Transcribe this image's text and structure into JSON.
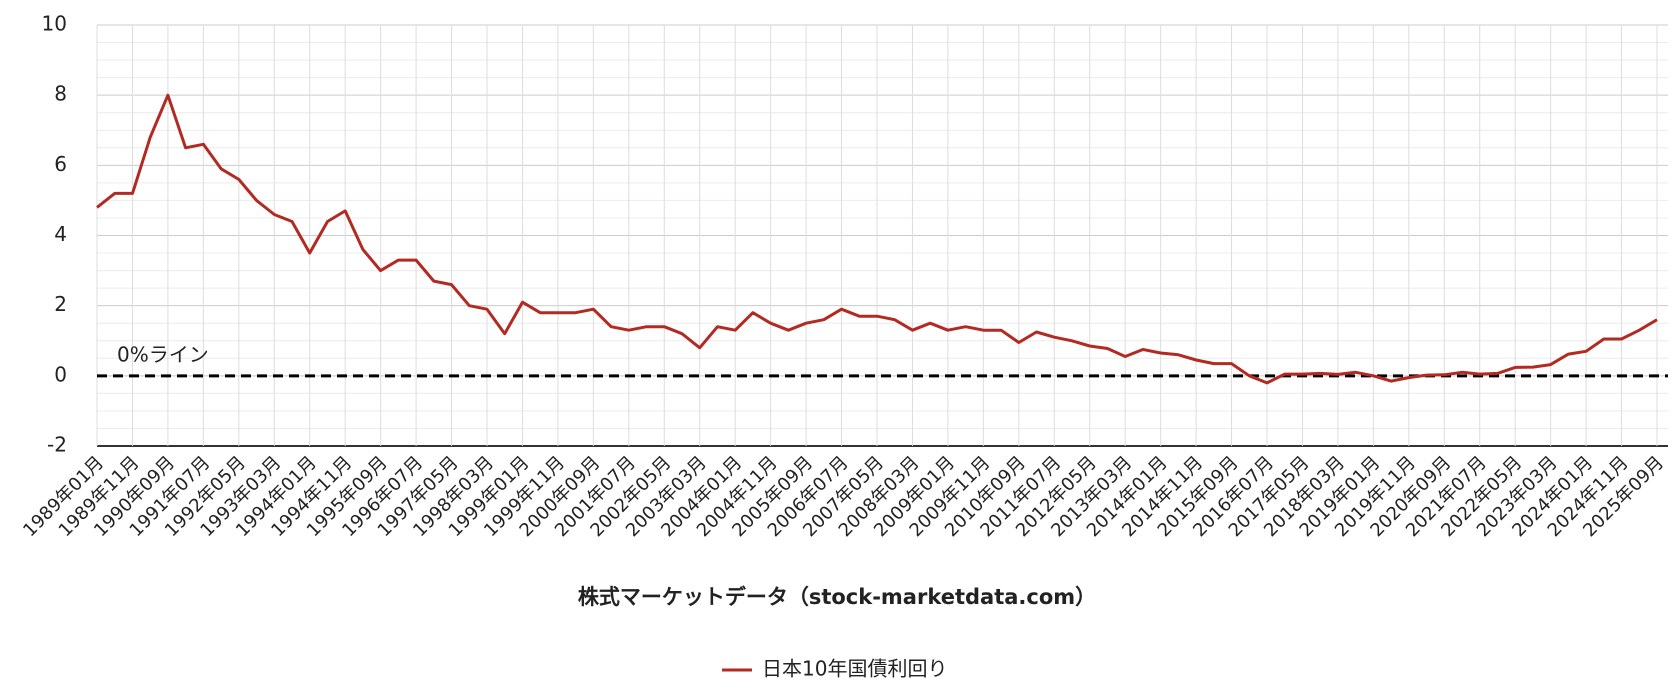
{
  "chart_data": {
    "type": "line",
    "x_label": "株式マーケットデータ（stock-marketdata.com）",
    "categories": [
      "1989年01月",
      null,
      "1989年11月",
      null,
      "1990年09月",
      null,
      "1991年07月",
      null,
      "1992年05月",
      null,
      "1993年03月",
      null,
      "1994年01月",
      null,
      "1994年11月",
      null,
      "1995年09月",
      null,
      "1996年07月",
      null,
      "1997年05月",
      null,
      "1998年03月",
      null,
      "1999年01月",
      null,
      "1999年11月",
      null,
      "2000年09月",
      null,
      "2001年07月",
      null,
      "2002年05月",
      null,
      "2003年03月",
      null,
      "2004年01月",
      null,
      "2004年11月",
      null,
      "2005年09月",
      null,
      "2006年07月",
      null,
      "2007年05月",
      null,
      "2008年03月",
      null,
      "2009年01月",
      null,
      "2009年11月",
      null,
      "2010年09月",
      null,
      "2011年07月",
      null,
      "2012年05月",
      null,
      "2013年03月",
      null,
      "2014年01月",
      null,
      "2014年11月",
      null,
      "2015年09月",
      null,
      "2016年07月",
      null,
      "2017年05月",
      null,
      "2018年03月",
      null,
      "2019年01月",
      null,
      "2019年11月",
      null,
      "2020年09月",
      null,
      "2021年07月",
      null,
      "2022年05月",
      null,
      "2023年03月",
      null,
      "2024年01月",
      null,
      "2024年11月",
      null,
      "2025年09月"
    ],
    "series": [
      {
        "name": "日本10年国債利回り",
        "color": "#b22a22",
        "values": [
          4.8,
          5.2,
          5.2,
          6.8,
          8.0,
          6.5,
          6.6,
          5.9,
          5.6,
          5.0,
          4.6,
          4.4,
          3.5,
          4.4,
          4.7,
          3.6,
          3.0,
          3.3,
          3.3,
          2.7,
          2.6,
          2.0,
          1.9,
          1.2,
          2.1,
          1.8,
          1.8,
          1.8,
          1.9,
          1.4,
          1.3,
          1.4,
          1.4,
          1.2,
          0.8,
          1.4,
          1.3,
          1.8,
          1.5,
          1.3,
          1.5,
          1.6,
          1.9,
          1.7,
          1.7,
          1.6,
          1.3,
          1.5,
          1.3,
          1.4,
          1.3,
          1.3,
          0.95,
          1.25,
          1.1,
          1.0,
          0.85,
          0.78,
          0.55,
          0.75,
          0.65,
          0.6,
          0.45,
          0.35,
          0.35,
          0.0,
          -0.2,
          0.05,
          0.05,
          0.07,
          0.04,
          0.1,
          0.0,
          -0.15,
          -0.05,
          0.02,
          0.03,
          0.1,
          0.05,
          0.07,
          0.24,
          0.25,
          0.32,
          0.62,
          0.7,
          1.05,
          1.05,
          1.3,
          1.6
        ]
      }
    ],
    "reference_line": {
      "value": 0,
      "label": "0%ライン"
    },
    "ylim": [
      -2,
      10
    ],
    "yticks": [
      -2,
      0,
      2,
      4,
      6,
      8,
      10
    ],
    "grid": true,
    "legend": "bottom"
  }
}
